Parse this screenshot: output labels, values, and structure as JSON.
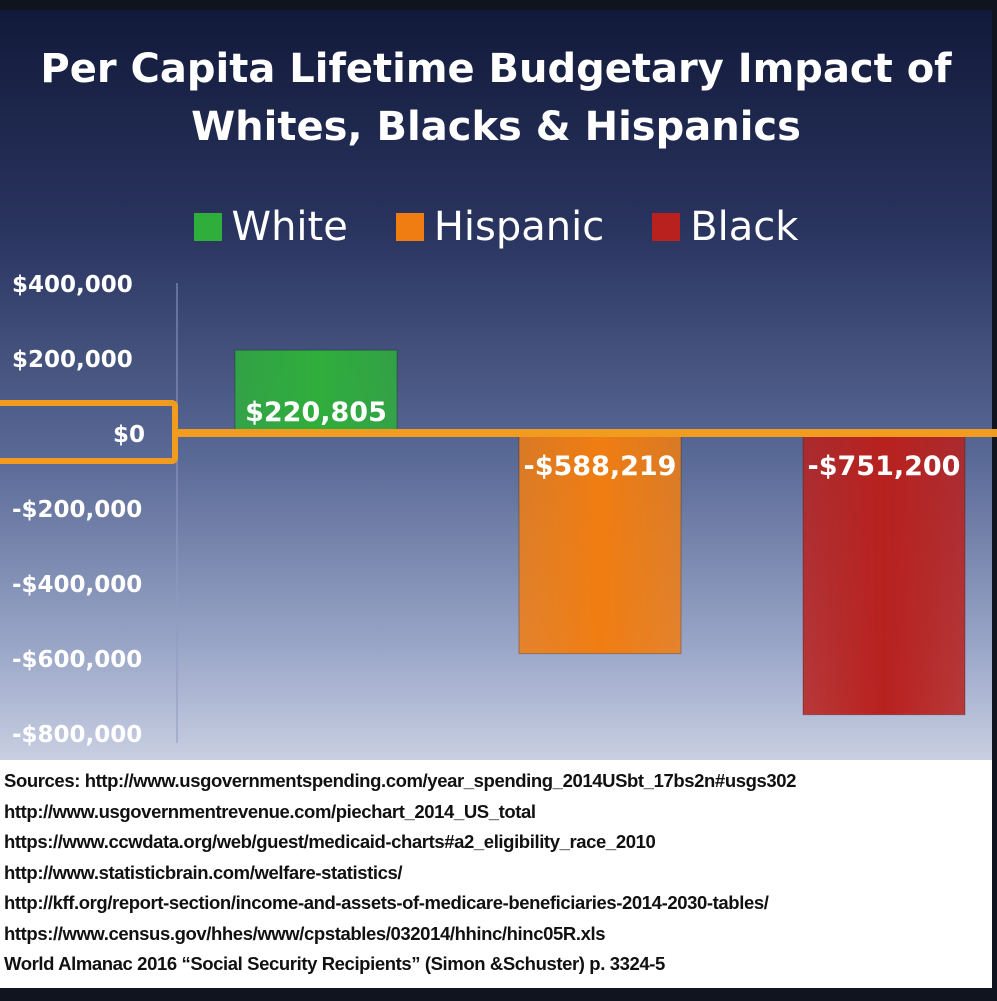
{
  "chart_data": {
    "type": "bar",
    "title_lines": [
      "Per Capita Lifetime Budgetary Impact of",
      "Whites, Blacks & Hispanics"
    ],
    "categories": [
      "White",
      "Hispanic",
      "Black"
    ],
    "values": [
      220805,
      -588219,
      -751200
    ],
    "value_labels": [
      "$220,805",
      "-$588,219",
      "-$751,200"
    ],
    "colors": [
      "#2fae3c",
      "#f07d12",
      "#b8211e"
    ],
    "legend": [
      {
        "label": "White",
        "color": "#2fae3c"
      },
      {
        "label": "Hispanic",
        "color": "#f07d12"
      },
      {
        "label": "Black",
        "color": "#b8211e"
      }
    ],
    "legend_position": "top",
    "ylim": [
      -800000,
      400000
    ],
    "yticks": [
      400000,
      200000,
      0,
      -200000,
      -400000,
      -600000,
      -800000
    ],
    "ytick_labels": [
      "$400,000",
      "$200,000",
      "$0",
      "-$200,000",
      "-$400,000",
      "-$600,000",
      "-$800,000"
    ],
    "zero_line_color": "#f29c1f",
    "grid": false
  },
  "sources": [
    "Sources: http://www.usgovernmentspending.com/year_spending_2014USbt_17bs2n#usgs302",
    "http://www.usgovernmentrevenue.com/piechart_2014_US_total",
    "https://www.ccwdata.org/web/guest/medicaid-charts#a2_eligibility_race_2010",
    "http://www.statisticbrain.com/welfare-statistics/",
    "http://kff.org/report-section/income-and-assets-of-medicare-beneficiaries-2014-2030-tables/",
    "https://www.census.gov/hhes/www/cpstables/032014/hhinc/hinc05R.xls",
    "World Almanac 2016 “Social Security Recipients” (Simon &Schuster) p. 3324-5"
  ]
}
